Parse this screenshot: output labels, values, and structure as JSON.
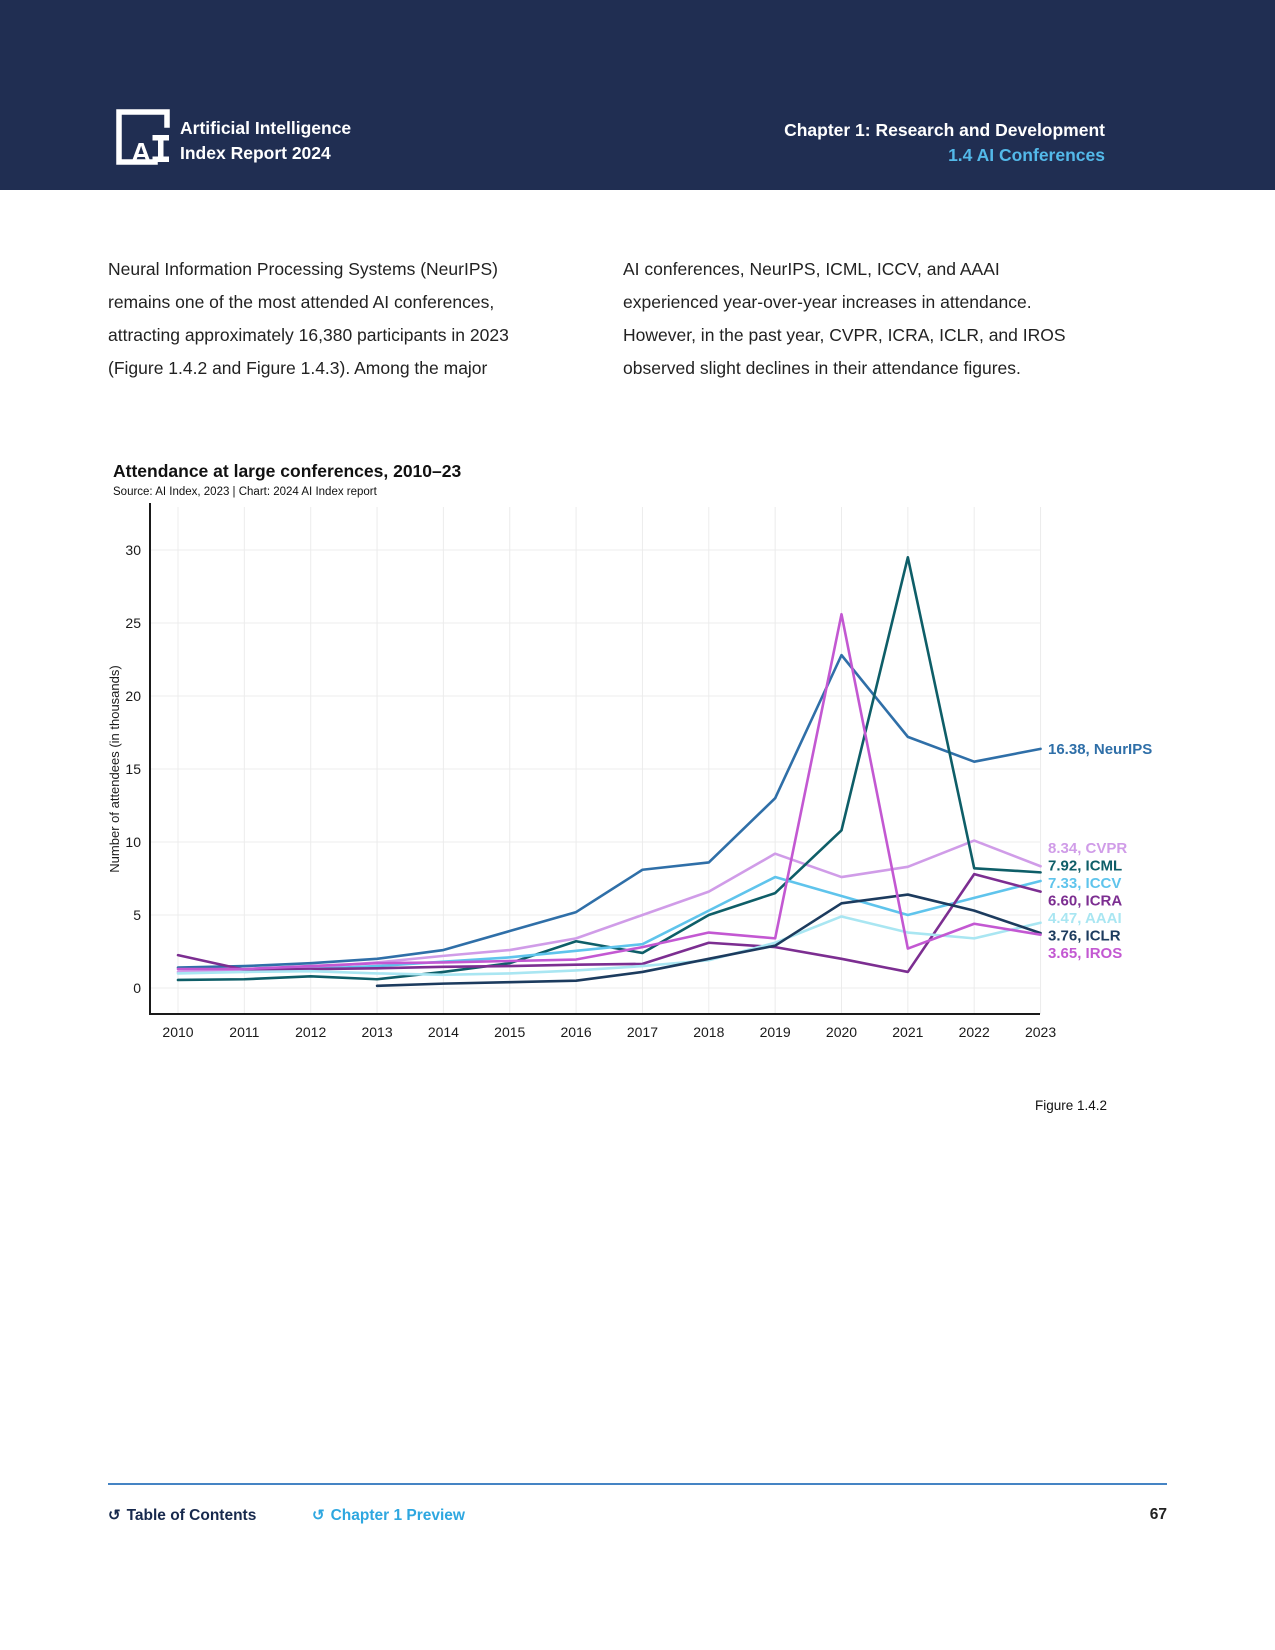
{
  "header": {
    "logo_mark": "AI",
    "logo_title": [
      "Artificial Intelligence",
      "Index Report 2024"
    ],
    "chapter": "Chapter 1: Research and Development",
    "section": "1.4 AI Conferences"
  },
  "body": {
    "col_left": [
      "Neural Information Processing Systems (NeurIPS)",
      "remains one of the most attended AI conferences,",
      "attracting approximately 16,380 participants in 2023",
      "(Figure 1.4.2 and Figure 1.4.3). Among the major"
    ],
    "col_right": [
      "AI conferences, NeurIPS, ICML, ICCV, and AAAI",
      "experienced year-over-year increases in attendance.",
      "However, in the past year, CVPR, ICRA, ICLR, and IROS",
      "observed slight declines in their attendance figures."
    ]
  },
  "figure": {
    "caption": "Figure 1.4.2"
  },
  "footer": {
    "return_icon": "↺",
    "toc": "Table of Contents",
    "preview": "Chapter 1 Preview",
    "page": "67"
  },
  "chart_data": {
    "type": "line",
    "title": "Attendance at large conferences, 2010–23",
    "source": "Source: AI Index, 2023 | Chart: 2024 AI Index report",
    "ylabel": "Number of attendees (in thousands)",
    "xlabel": "",
    "x": [
      2010,
      2011,
      2012,
      2013,
      2014,
      2015,
      2016,
      2017,
      2018,
      2019,
      2020,
      2021,
      2022,
      2023
    ],
    "ylim": [
      0,
      30
    ],
    "yticks": [
      0,
      5,
      10,
      15,
      20,
      25,
      30
    ],
    "grid": true,
    "legend_position": "right-of-line-end-labels",
    "grid_color": "#ececec",
    "axis_color": "#1a1a1a",
    "series": [
      {
        "name": "NeurIPS",
        "label": "16.38, NeurIPS",
        "color": "#2f6fa8",
        "values": [
          1.4,
          1.5,
          1.7,
          2.0,
          2.6,
          3.9,
          5.2,
          8.1,
          8.6,
          13.0,
          22.8,
          17.2,
          15.5,
          16.38
        ]
      },
      {
        "name": "CVPR",
        "label": "8.34, CVPR",
        "color": "#d09ce8",
        "values": [
          1.1,
          1.2,
          1.4,
          1.75,
          2.2,
          2.6,
          3.4,
          5.0,
          6.6,
          9.2,
          7.6,
          8.3,
          10.1,
          8.34
        ]
      },
      {
        "name": "ICML",
        "label": "7.92, ICML",
        "color": "#0e5e68",
        "values": [
          0.55,
          0.6,
          0.8,
          0.6,
          1.1,
          1.7,
          3.2,
          2.4,
          5.0,
          6.5,
          10.8,
          29.5,
          8.2,
          7.92
        ]
      },
      {
        "name": "ICCV",
        "label": "7.33, ICCV",
        "color": "#5fc4ec",
        "values": [
          null,
          1.1,
          1.3,
          1.5,
          1.8,
          2.1,
          2.55,
          3.0,
          5.3,
          7.6,
          6.3,
          5.0,
          6.17,
          7.33
        ]
      },
      {
        "name": "ICRA",
        "label": "6.60, ICRA",
        "color": "#7c2e91",
        "values": [
          2.25,
          1.25,
          1.3,
          1.35,
          1.45,
          1.5,
          1.6,
          1.65,
          3.1,
          2.8,
          2.0,
          1.1,
          7.8,
          6.6
        ]
      },
      {
        "name": "AAAI",
        "label": "4.47, AAAI",
        "color": "#a9e6f2",
        "values": [
          1.0,
          1.1,
          1.15,
          1.0,
          0.9,
          1.0,
          1.2,
          1.5,
          1.9,
          3.1,
          4.9,
          3.8,
          3.4,
          4.47
        ]
      },
      {
        "name": "ICLR",
        "label": "3.76, ICLR",
        "color": "#1c3b5e",
        "values": [
          null,
          null,
          null,
          0.15,
          0.3,
          0.4,
          0.5,
          1.1,
          2.0,
          2.9,
          5.8,
          6.4,
          5.3,
          3.76
        ]
      },
      {
        "name": "IROS",
        "label": "3.65, IROS",
        "color": "#c358d2",
        "values": [
          1.3,
          1.3,
          1.5,
          1.7,
          1.75,
          1.85,
          1.95,
          2.8,
          3.8,
          3.4,
          25.6,
          2.7,
          4.4,
          3.65
        ]
      }
    ]
  }
}
